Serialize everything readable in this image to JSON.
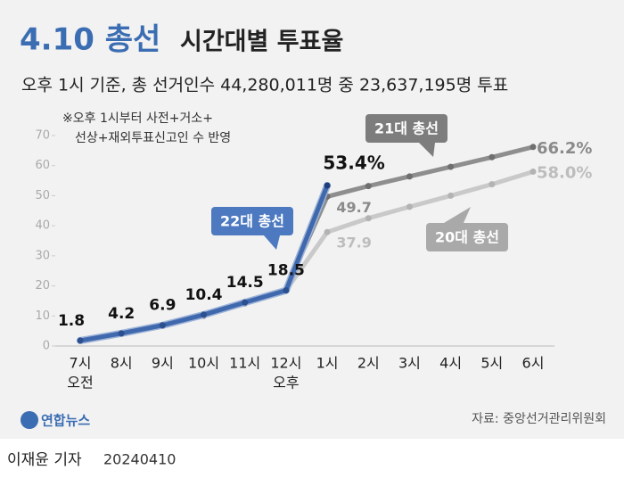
{
  "chart_data": {
    "type": "line",
    "title": "4.10 총선",
    "title_rest": "시간대별 투표율",
    "subtitle": "오후 1시 기준, 총 선거인수 44,280,011명 중 23,637,195명 투표",
    "note": [
      "※오후 1시부터 사전+거소+",
      "선상+재외투표신고인 수 반영"
    ],
    "categories": [
      "7시",
      "8시",
      "9시",
      "10시",
      "11시",
      "12시",
      "1시",
      "2시",
      "3시",
      "4시",
      "5시",
      "6시"
    ],
    "x_sublabels": [
      "오전",
      null,
      null,
      null,
      null,
      "오후",
      null,
      null,
      null,
      null,
      null,
      null
    ],
    "ylim": [
      0,
      70
    ],
    "yticks": [
      0,
      10,
      20,
      30,
      40,
      50,
      60,
      70
    ],
    "series": [
      {
        "name": "20대 총선",
        "color": "#c9c9c9",
        "label_color": "#bdbdbd",
        "values": [
          2.0,
          4.3,
          6.7,
          10.0,
          14.1,
          18.6,
          37.9,
          42.5,
          46.3,
          50.0,
          53.8,
          58.0
        ],
        "value_labels": [
          null,
          null,
          null,
          null,
          null,
          null,
          "37.9",
          null,
          null,
          null,
          null,
          "58.0%"
        ]
      },
      {
        "name": "21대 총선",
        "color": "#8e8e8e",
        "label_color": "#8a8a8a",
        "values": [
          1.9,
          4.1,
          6.7,
          10.1,
          14.3,
          18.9,
          49.7,
          53.2,
          56.4,
          59.6,
          62.8,
          66.2
        ],
        "value_labels": [
          null,
          null,
          null,
          null,
          null,
          null,
          "49.7",
          null,
          null,
          null,
          null,
          "66.2%"
        ]
      },
      {
        "name": "22대 총선",
        "color": "#3f68ad",
        "label_color": "#111111",
        "values": [
          1.8,
          4.2,
          6.9,
          10.4,
          14.5,
          18.5,
          53.4,
          null,
          null,
          null,
          null,
          null
        ],
        "value_labels": [
          "1.8",
          "4.2",
          "6.9",
          "10.4",
          "14.5",
          "18.5",
          "53.4%",
          null,
          null,
          null,
          null,
          null
        ]
      }
    ],
    "source": "자료: 중앙선거관리위원회",
    "logo": "연합뉴스",
    "byline": "이재윤 기자",
    "date": "20240410"
  }
}
